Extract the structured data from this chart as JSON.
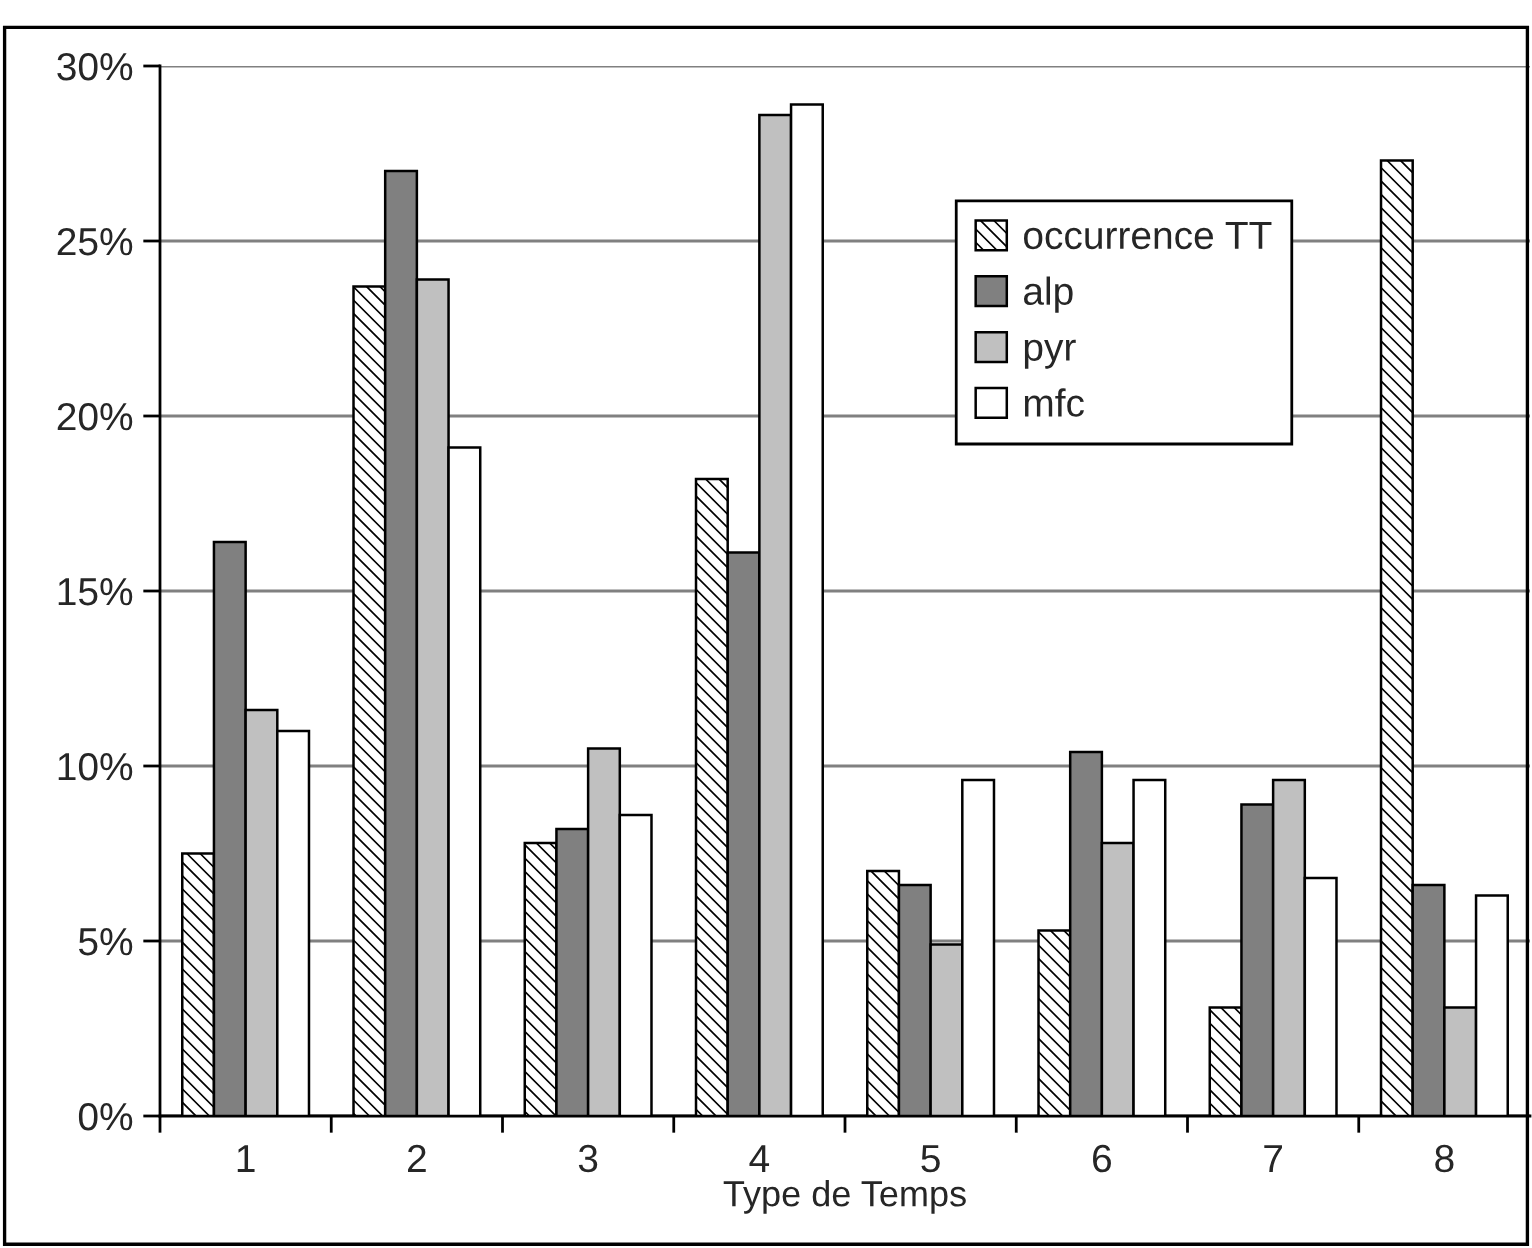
{
  "chart_data": {
    "type": "bar",
    "xlabel": "Type de Temps",
    "categories": [
      "1",
      "2",
      "3",
      "4",
      "5",
      "6",
      "7",
      "8"
    ],
    "series": [
      {
        "name": "occurrence TT",
        "color": "#000000",
        "values": [
          7.5,
          23.7,
          7.8,
          18.2,
          7.0,
          5.3,
          3.1,
          27.3
        ]
      },
      {
        "name": "alp",
        "color": "#808080",
        "values": [
          16.4,
          27.0,
          8.2,
          16.1,
          6.6,
          10.4,
          8.9,
          6.6
        ]
      },
      {
        "name": "pyr",
        "color": "#c0c0c0",
        "values": [
          11.6,
          23.9,
          10.5,
          28.6,
          4.9,
          7.8,
          9.6,
          3.1
        ]
      },
      {
        "name": "mfc",
        "color": "#ffffff",
        "values": [
          11.0,
          19.1,
          8.6,
          28.9,
          9.6,
          9.6,
          6.8,
          6.3
        ]
      }
    ],
    "ylim": [
      0,
      30
    ],
    "yticks": [
      {
        "value": 0,
        "label": "0%"
      },
      {
        "value": 5,
        "label": "5%"
      },
      {
        "value": 10,
        "label": "10%"
      },
      {
        "value": 15,
        "label": "15%"
      },
      {
        "value": 20,
        "label": "20%"
      },
      {
        "value": 25,
        "label": "25%"
      },
      {
        "value": 30,
        "label": "30%"
      }
    ],
    "grid": "y",
    "legend": "top right"
  }
}
